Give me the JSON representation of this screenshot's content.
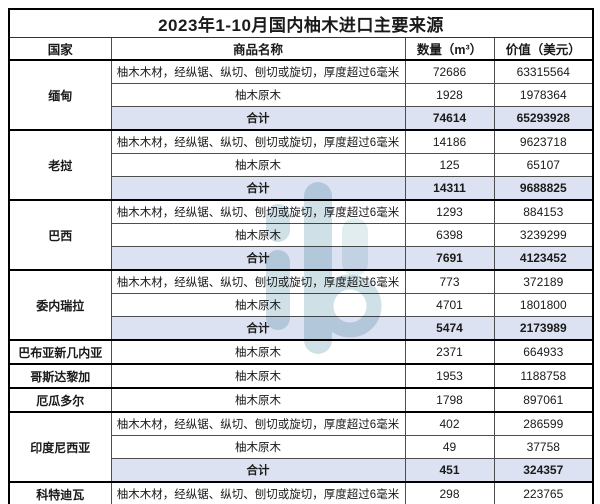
{
  "title": "2023年1-10月国内柚木进口主要来源",
  "columns": [
    "国家",
    "商品名称",
    "数量（m³）",
    "价值（美元）"
  ],
  "total_label": "合计",
  "colors": {
    "total_row_bg": "#dce2f2",
    "outer_border": "#000000",
    "inner_border": "#4d4d4d",
    "watermark": "#cfe1e6",
    "watermark_light": "#e2edef"
  },
  "icons": {
    "watermark": "logo-watermark"
  },
  "groups": [
    {
      "country": "缅甸",
      "rows": [
        {
          "product": "柚木木材，经纵锯、纵切、刨切或旋切，厚度超过6毫米",
          "qty": "72686",
          "value": "63315564"
        },
        {
          "product": "柚木原木",
          "qty": "1928",
          "value": "1978364"
        }
      ],
      "total": {
        "qty": "74614",
        "value": "65293928"
      }
    },
    {
      "country": "老挝",
      "rows": [
        {
          "product": "柚木木材，经纵锯、纵切、刨切或旋切，厚度超过6毫米",
          "qty": "14186",
          "value": "9623718"
        },
        {
          "product": "柚木原木",
          "qty": "125",
          "value": "65107"
        }
      ],
      "total": {
        "qty": "14311",
        "value": "9688825"
      }
    },
    {
      "country": "巴西",
      "rows": [
        {
          "product": "柚木木材，经纵锯、纵切、刨切或旋切，厚度超过6毫米",
          "qty": "1293",
          "value": "884153"
        },
        {
          "product": "柚木原木",
          "qty": "6398",
          "value": "3239299"
        }
      ],
      "total": {
        "qty": "7691",
        "value": "4123452"
      }
    },
    {
      "country": "委内瑞拉",
      "rows": [
        {
          "product": "柚木木材，经纵锯、纵切、刨切或旋切，厚度超过6毫米",
          "qty": "773",
          "value": "372189"
        },
        {
          "product": "柚木原木",
          "qty": "4701",
          "value": "1801800"
        }
      ],
      "total": {
        "qty": "5474",
        "value": "2173989"
      }
    },
    {
      "country": "巴布亚新几内亚",
      "rows": [
        {
          "product": "柚木原木",
          "qty": "2371",
          "value": "664933"
        }
      ],
      "total": null
    },
    {
      "country": "哥斯达黎加",
      "rows": [
        {
          "product": "柚木原木",
          "qty": "1953",
          "value": "1188758"
        }
      ],
      "total": null
    },
    {
      "country": "厄瓜多尔",
      "rows": [
        {
          "product": "柚木原木",
          "qty": "1798",
          "value": "897061"
        }
      ],
      "total": null
    },
    {
      "country": "印度尼西亚",
      "rows": [
        {
          "product": "柚木木材，经纵锯、纵切、刨切或旋切，厚度超过6毫米",
          "qty": "402",
          "value": "286599"
        },
        {
          "product": "柚木原木",
          "qty": "49",
          "value": "37758"
        }
      ],
      "total": {
        "qty": "451",
        "value": "324357"
      }
    },
    {
      "country": "科特迪瓦",
      "rows": [
        {
          "product": "柚木木材，经纵锯、纵切、刨切或旋切，厚度超过6毫米",
          "qty": "298",
          "value": "223765"
        }
      ],
      "total": null
    }
  ]
}
